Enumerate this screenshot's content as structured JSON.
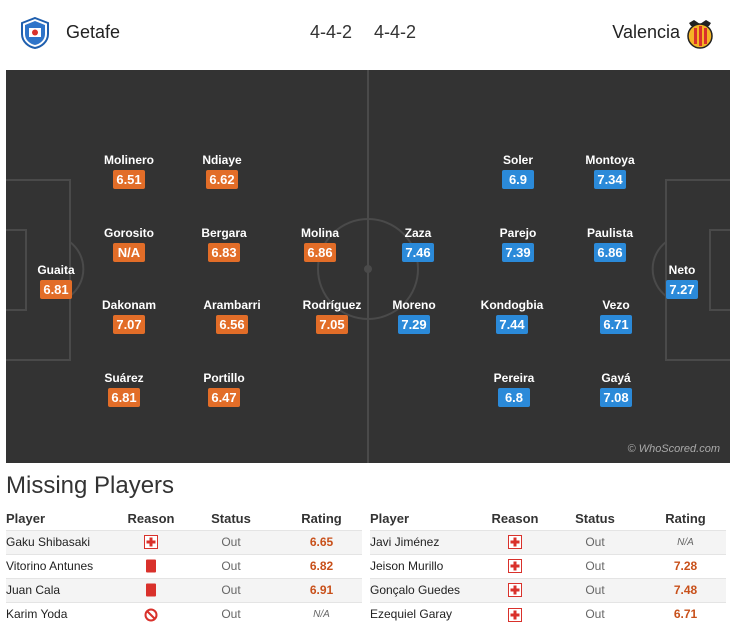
{
  "header": {
    "home_team": "Getafe",
    "away_team": "Valencia",
    "home_formation": "4-4-2",
    "away_formation": "4-4-2",
    "home_logo_icon": "getafe-crest-icon",
    "away_logo_icon": "valencia-bat-crest-icon"
  },
  "colors": {
    "pitch": "#333333",
    "home_rating": "#e26d28",
    "away_rating": "#2b8ad9",
    "rating_text": "#c8501a"
  },
  "pitch": {
    "watermark": "© WhoScored.com",
    "home_players": [
      {
        "name": "Guaita",
        "rating": "6.81"
      },
      {
        "name": "Molinero",
        "rating": "6.51"
      },
      {
        "name": "Gorosito",
        "rating": "N/A"
      },
      {
        "name": "Dakonam",
        "rating": "7.07"
      },
      {
        "name": "Suárez",
        "rating": "6.81"
      },
      {
        "name": "Ndiaye",
        "rating": "6.62"
      },
      {
        "name": "Bergara",
        "rating": "6.83"
      },
      {
        "name": "Arambarri",
        "rating": "6.56"
      },
      {
        "name": "Portillo",
        "rating": "6.47"
      },
      {
        "name": "Molina",
        "rating": "6.86"
      },
      {
        "name": "Rodríguez",
        "rating": "7.05"
      }
    ],
    "away_players": [
      {
        "name": "Zaza",
        "rating": "7.46"
      },
      {
        "name": "Moreno",
        "rating": "7.29"
      },
      {
        "name": "Soler",
        "rating": "6.9"
      },
      {
        "name": "Parejo",
        "rating": "7.39"
      },
      {
        "name": "Kondogbia",
        "rating": "7.44"
      },
      {
        "name": "Pereira",
        "rating": "6.8"
      },
      {
        "name": "Montoya",
        "rating": "7.34"
      },
      {
        "name": "Paulista",
        "rating": "6.86"
      },
      {
        "name": "Vezo",
        "rating": "6.71"
      },
      {
        "name": "Gayá",
        "rating": "7.08"
      },
      {
        "name": "Neto",
        "rating": "7.27"
      }
    ]
  },
  "missing": {
    "title": "Missing Players",
    "headers": {
      "player": "Player",
      "reason": "Reason",
      "status": "Status",
      "rating": "Rating"
    },
    "home": [
      {
        "player": "Gaku Shibasaki",
        "reason_icon": "injury-cross-icon",
        "status": "Out",
        "rating": "6.65"
      },
      {
        "player": "Vitorino Antunes",
        "reason_icon": "red-card-icon",
        "status": "Out",
        "rating": "6.82"
      },
      {
        "player": "Juan Cala",
        "reason_icon": "red-card-icon",
        "status": "Out",
        "rating": "6.91"
      },
      {
        "player": "Karim Yoda",
        "reason_icon": "ineligible-icon",
        "status": "Out",
        "rating": "N/A"
      }
    ],
    "away": [
      {
        "player": "Javi Jiménez",
        "reason_icon": "injury-cross-icon",
        "status": "Out",
        "rating": "N/A"
      },
      {
        "player": "Jeison Murillo",
        "reason_icon": "injury-cross-icon",
        "status": "Out",
        "rating": "7.28"
      },
      {
        "player": "Gonçalo Guedes",
        "reason_icon": "injury-cross-icon",
        "status": "Out",
        "rating": "7.48"
      },
      {
        "player": "Ezequiel Garay",
        "reason_icon": "injury-cross-icon",
        "status": "Out",
        "rating": "6.71"
      }
    ]
  }
}
